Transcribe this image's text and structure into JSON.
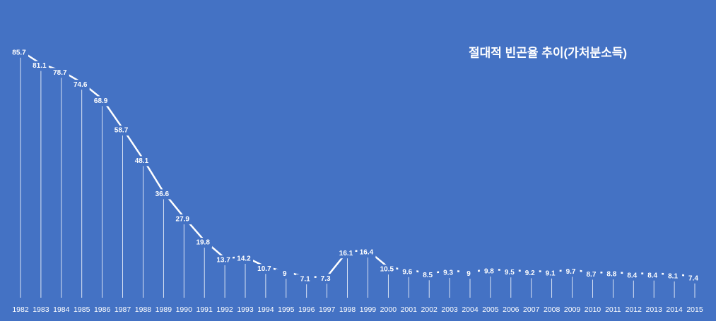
{
  "chart_data": {
    "type": "line",
    "title": "절대적 빈곤율 추이(가처분소득)",
    "categories": [
      "1982",
      "1983",
      "1984",
      "1985",
      "1986",
      "1987",
      "1988",
      "1989",
      "1990",
      "1991",
      "1992",
      "1993",
      "1994",
      "1995",
      "1996",
      "1997",
      "1998",
      "1999",
      "2000",
      "2001",
      "2002",
      "2003",
      "2004",
      "2005",
      "2006",
      "2007",
      "2008",
      "2009",
      "2010",
      "2011",
      "2012",
      "2013",
      "2014",
      "2015"
    ],
    "series": [
      {
        "color": "#ffffff",
        "values": [
          85.7,
          81.1,
          78.7,
          74.6,
          68.9,
          58.7,
          48.1,
          36.6,
          27.9,
          19.8,
          13.7,
          14.2,
          10.7,
          9,
          7.1,
          7.3,
          16.1,
          16.4,
          10.5,
          9.6,
          8.5,
          9.3,
          9,
          9.8,
          9.5,
          9.2,
          9.1,
          9.7,
          8.7,
          8.8,
          8.4,
          8.4,
          8.1,
          7.4
        ]
      }
    ],
    "drop_lines": true
  }
}
